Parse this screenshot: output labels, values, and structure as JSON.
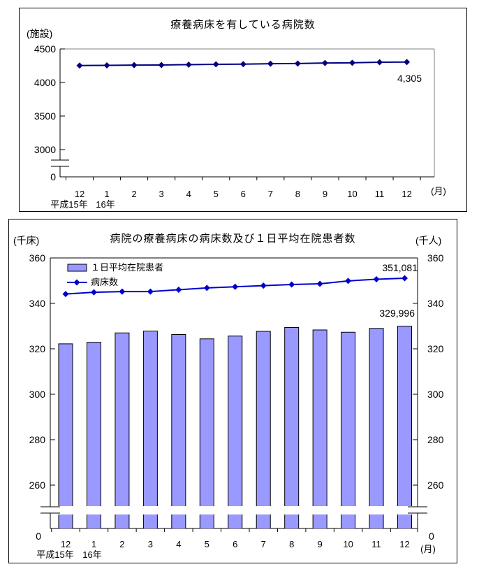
{
  "colors": {
    "background": "#FFFFFF",
    "bar_fill": "#9999FF",
    "bar_border": "#000000",
    "line_top_chart": "#000080",
    "line_bottom_chart": "#0000CC",
    "plot_frame_gray": "#808080"
  },
  "chart_data": [
    {
      "type": "line",
      "title": "療養病床を有している病院数",
      "ylabel": "(施設)",
      "x_axis_note": "(月)",
      "x_categories": [
        "12",
        "1",
        "2",
        "3",
        "4",
        "5",
        "6",
        "7",
        "8",
        "9",
        "10",
        "11",
        "12"
      ],
      "x_era_labels": [
        "平成15年",
        "16年"
      ],
      "y_ticks": [
        4500,
        4000,
        3500,
        3000
      ],
      "y_zero_label": "0",
      "y_axis_break": true,
      "ylim_top": 4500,
      "legend_position": "none",
      "grid": false,
      "series": [
        {
          "name": "病院数",
          "type": "line",
          "color": "#000080",
          "marker": "diamond",
          "values": [
            4253,
            4255,
            4259,
            4261,
            4266,
            4271,
            4274,
            4280,
            4283,
            4290,
            4293,
            4302,
            4305
          ],
          "last_value_label": "4,305"
        }
      ]
    },
    {
      "type": "bar+line",
      "title": "病院の療養病床の病床数及び１日平均在院患者数",
      "ylabel_left": "(千床)",
      "ylabel_right": "(千人)",
      "x_axis_note": "(月)",
      "x_categories": [
        "12",
        "1",
        "2",
        "3",
        "4",
        "5",
        "6",
        "7",
        "8",
        "9",
        "10",
        "11",
        "12"
      ],
      "x_era_labels": [
        "平成15年",
        "16年"
      ],
      "y_ticks": [
        360,
        340,
        320,
        300,
        280,
        260
      ],
      "y_zero_label": "0",
      "y_axis_break": true,
      "ylim_top": 360,
      "legend_position": "top-left-inside",
      "grid": false,
      "series": [
        {
          "name": "１日平均在院患者",
          "type": "bar",
          "color": "#9999FF",
          "values": [
            322.2,
            322.9,
            327.0,
            327.8,
            326.3,
            324.4,
            325.6,
            327.7,
            329.4,
            328.3,
            327.3,
            329.0,
            329.996
          ],
          "last_value_label": "329,996"
        },
        {
          "name": "病床数",
          "type": "line",
          "color": "#0000CC",
          "marker": "diamond",
          "values": [
            344.1,
            344.9,
            345.2,
            345.2,
            346.0,
            346.8,
            347.3,
            347.8,
            348.3,
            348.6,
            349.9,
            350.6,
            351.081
          ],
          "last_value_label": "351,081"
        }
      ]
    }
  ]
}
